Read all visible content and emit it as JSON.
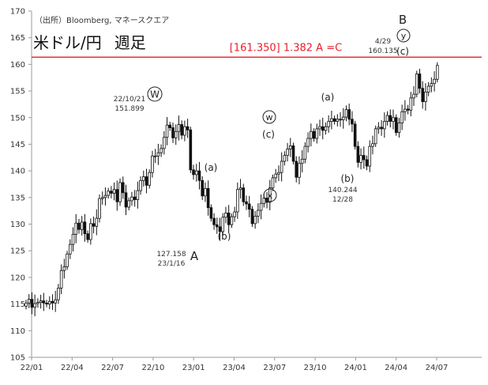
{
  "header": {
    "source": "（出所）Bloomberg, マネースクエア",
    "title": "米ドル/円",
    "frequency": "週足"
  },
  "chart_data": {
    "type": "candlestick",
    "y_axis": {
      "min": 105,
      "max": 170,
      "ticks": [
        "105",
        "110",
        "115",
        "120",
        "125",
        "130",
        "135",
        "140",
        "145",
        "150",
        "155",
        "160",
        "165",
        "170"
      ]
    },
    "x_axis": {
      "ticks": [
        "22/01",
        "22/04",
        "22/07",
        "22/10",
        "23/01",
        "23/04",
        "23/07",
        "23/10",
        "24/01",
        "24/04",
        "24/07"
      ]
    },
    "grid": false,
    "reference_line": {
      "value": 161.35,
      "label": "[161.350] 1.382 A =C",
      "color": "#e8202a"
    },
    "weekly_closes": [
      115.2,
      115.9,
      114.4,
      115.1,
      115.3,
      115.6,
      115.2,
      115.0,
      115.5,
      115.2,
      115.8,
      118.0,
      121.3,
      122.0,
      124.4,
      126.2,
      128.1,
      130.2,
      129.0,
      130.4,
      128.2,
      127.1,
      130.1,
      129.6,
      131.1,
      134.8,
      135.0,
      135.4,
      136.2,
      135.8,
      136.5,
      134.2,
      137.8,
      135.9,
      133.2,
      134.4,
      135.1,
      134.6,
      136.3,
      138.2,
      138.9,
      137.3,
      139.7,
      142.8,
      142.8,
      143.4,
      144.2,
      146.3,
      148.6,
      148.1,
      146.2,
      147.4,
      148.7,
      146.7,
      148.3,
      147.7,
      140.2,
      139.3,
      140.0,
      138.2,
      135.3,
      136.7,
      133.1,
      131.1,
      129.9,
      129.5,
      128.6,
      131.3,
      132.1,
      129.9,
      131.4,
      132.3,
      136.5,
      136.8,
      134.2,
      133.8,
      132.8,
      130.1,
      131.5,
      132.6,
      133.9,
      134.9,
      134.1,
      136.8,
      138.7,
      139.4,
      139.7,
      141.8,
      142.9,
      144.1,
      144.7,
      141.8,
      138.8,
      141.4,
      142.2,
      144.6,
      146.1,
      147.4,
      146.1,
      147.9,
      148.3,
      147.6,
      148.3,
      149.3,
      149.8,
      149.3,
      149.7,
      149.6,
      150.1,
      151.5,
      149.7,
      148.8,
      144.6,
      141.6,
      142.9,
      142.1,
      140.9,
      144.6,
      145.1,
      147.9,
      148.2,
      147.9,
      149.3,
      150.4,
      149.3,
      150.0,
      147.2,
      149.0,
      151.1,
      151.6,
      151.4,
      153.7,
      154.4,
      158.2,
      155.5,
      153.0,
      154.8,
      155.9,
      156.4,
      157.2,
      159.8
    ],
    "key_points": [
      {
        "date": "22/10/21",
        "value": 151.899,
        "wave": "W"
      },
      {
        "date": "23/1/16",
        "value": 127.158,
        "wave": "A"
      },
      {
        "date": "12/28",
        "value": 140.244,
        "wave": "(b)"
      },
      {
        "date": "4/29",
        "value": 160.135,
        "wave": "B (c) y"
      }
    ],
    "annotations": [
      {
        "text": "22/10/21\n151.899"
      },
      {
        "text": "W"
      },
      {
        "text": "127.158\n23/1/16"
      },
      {
        "text": "A"
      },
      {
        "text": "(a)"
      },
      {
        "text": "(b)"
      },
      {
        "text": "w"
      },
      {
        "text": "(c)"
      },
      {
        "text": "x"
      },
      {
        "text": "(a)"
      },
      {
        "text": "(b)"
      },
      {
        "text": "140.244\n12/28"
      },
      {
        "text": "B"
      },
      {
        "text": "y"
      },
      {
        "text": "4/29\n160.135"
      },
      {
        "text": "(c)"
      }
    ]
  }
}
